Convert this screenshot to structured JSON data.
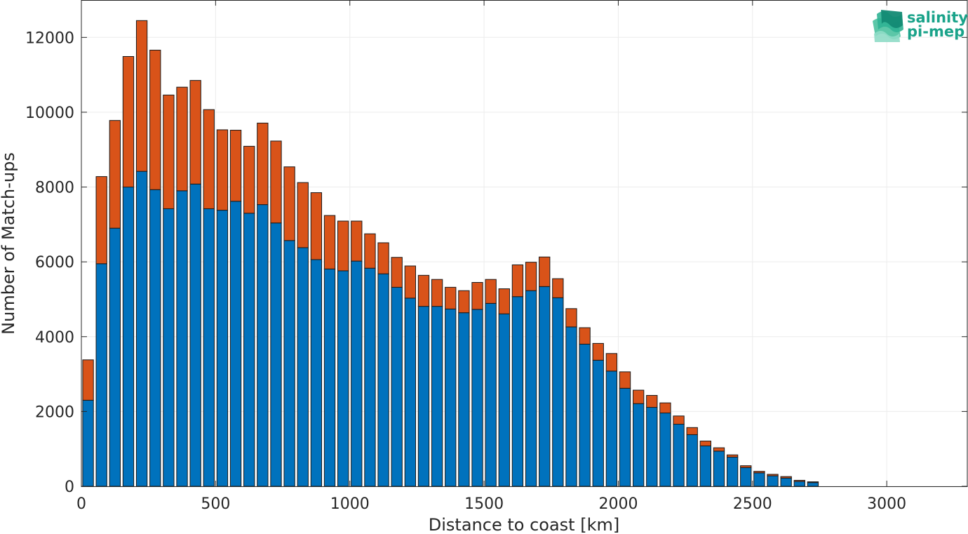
{
  "chart_data": {
    "type": "bar",
    "stacked": true,
    "xlabel": "Distance to coast [km]",
    "ylabel": "Number of Match-ups",
    "xlim": [
      0,
      3300
    ],
    "ylim": [
      0,
      13000
    ],
    "xticks": [
      0,
      500,
      1000,
      1500,
      2000,
      2500,
      3000
    ],
    "yticks": [
      0,
      2000,
      4000,
      6000,
      8000,
      10000,
      12000
    ],
    "grid": true,
    "bin_width": 50,
    "x": [
      25,
      75,
      125,
      175,
      225,
      275,
      325,
      375,
      425,
      475,
      525,
      575,
      625,
      675,
      725,
      775,
      825,
      875,
      925,
      975,
      1025,
      1075,
      1125,
      1175,
      1225,
      1275,
      1325,
      1375,
      1425,
      1475,
      1525,
      1575,
      1625,
      1675,
      1725,
      1775,
      1825,
      1875,
      1925,
      1975,
      2025,
      2075,
      2125,
      2175,
      2225,
      2275,
      2325,
      2375,
      2425,
      2475,
      2525,
      2575,
      2625,
      2675,
      2725
    ],
    "series": [
      {
        "color": "#0072bd",
        "values": [
          2300,
          5950,
          6900,
          8000,
          8420,
          7930,
          7420,
          7900,
          8080,
          7420,
          7380,
          7620,
          7300,
          7530,
          7040,
          6570,
          6380,
          6060,
          5810,
          5760,
          6020,
          5830,
          5680,
          5320,
          5030,
          4810,
          4810,
          4740,
          4640,
          4730,
          4890,
          4610,
          5070,
          5230,
          5340,
          5040,
          4260,
          3800,
          3370,
          3080,
          2620,
          2210,
          2110,
          1960,
          1660,
          1380,
          1080,
          940,
          780,
          500,
          360,
          280,
          220,
          130,
          100
        ]
      },
      {
        "color": "#d95319",
        "values": [
          1080,
          2330,
          2880,
          3490,
          4030,
          3730,
          3040,
          2770,
          2770,
          2650,
          2150,
          1900,
          1790,
          2180,
          2190,
          1970,
          1740,
          1790,
          1430,
          1330,
          1070,
          920,
          830,
          800,
          860,
          830,
          720,
          580,
          590,
          720,
          640,
          670,
          850,
          760,
          790,
          510,
          490,
          440,
          450,
          470,
          440,
          360,
          320,
          270,
          220,
          190,
          130,
          90,
          60,
          50,
          40,
          40,
          40,
          30,
          20
        ]
      }
    ]
  },
  "logo": {
    "line1": "salinity",
    "line2": "pi-mep",
    "color": "#1aa38a"
  }
}
